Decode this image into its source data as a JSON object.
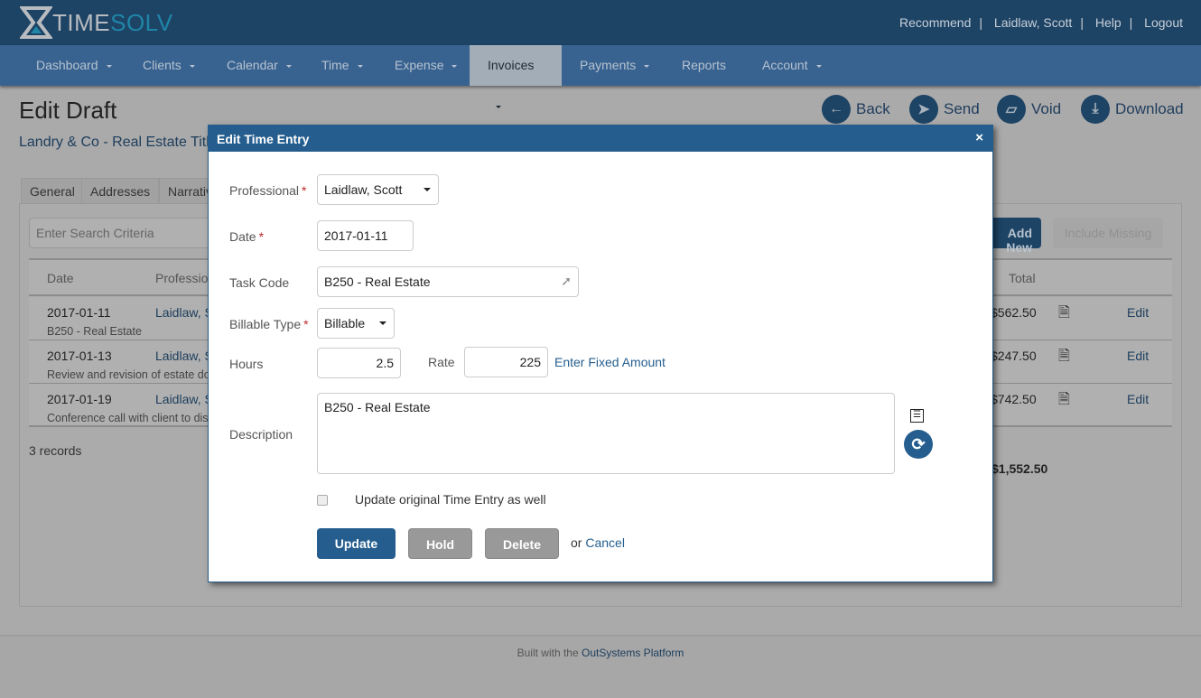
{
  "app": {
    "logo_part1": "TIME",
    "logo_part2": "SOLV",
    "logo_text": "TimeSolv"
  },
  "top_links": [
    "Recommend",
    "Laidlaw, Scott",
    "Help",
    "Logout"
  ],
  "nav": [
    {
      "label": "Dashboard",
      "caret": true
    },
    {
      "label": "Clients",
      "caret": true
    },
    {
      "label": "Calendar",
      "caret": true
    },
    {
      "label": "Time",
      "caret": true
    },
    {
      "label": "Expense",
      "caret": true
    },
    {
      "label": "Invoices",
      "caret": true,
      "active": true
    },
    {
      "label": "Payments",
      "caret": true
    },
    {
      "label": "Reports",
      "caret": false
    },
    {
      "label": "Account",
      "caret": true
    }
  ],
  "page": {
    "title": "Edit Draft",
    "subtitle": "Landry & Co - Real Estate Title"
  },
  "actions": [
    {
      "label": "Back",
      "icon": "arrow-left-icon"
    },
    {
      "label": "Send",
      "icon": "paper-plane-icon"
    },
    {
      "label": "Void",
      "icon": "eraser-icon"
    },
    {
      "label": "Download",
      "icon": "download-icon"
    }
  ],
  "tabs": [
    "General",
    "Addresses",
    "Narrative"
  ],
  "search": {
    "placeholder": "Enter Search Criteria"
  },
  "buttons": {
    "add_new": "Add New",
    "include_missing": "Include Missing"
  },
  "table": {
    "headers": {
      "date": "Date",
      "professional": "Professional",
      "total": "Total"
    },
    "rows": [
      {
        "date": "2017-01-11",
        "professional": "Laidlaw, Scott",
        "desc": "B250 - Real Estate",
        "total": "$562.50",
        "action": "Edit"
      },
      {
        "date": "2017-01-13",
        "professional": "Laidlaw, Scott",
        "desc": "Review and revision of estate documents",
        "total": "$247.50",
        "action": "Edit"
      },
      {
        "date": "2017-01-19",
        "professional": "Laidlaw, Scott",
        "desc": "Conference call with client to discuss",
        "total": "$742.50",
        "action": "Edit"
      }
    ],
    "records": "3 records",
    "grand_total": "$1,552.50"
  },
  "footer": {
    "prefix": "Built with the ",
    "link": "OutSystems Platform"
  },
  "modal": {
    "title": "Edit Time Entry",
    "close": "×",
    "professional_label": "Professional",
    "professional_value": "Laidlaw, Scott",
    "date_label": "Date",
    "date_value": "2017-01-11",
    "task_label": "Task Code",
    "task_value": "B250 - Real Estate",
    "billable_label": "Billable Type",
    "billable_value": "Billable",
    "hours_label": "Hours",
    "hours_value": "2.5",
    "rate_label": "Rate",
    "rate_value": "225",
    "fixed_link": "Enter Fixed Amount",
    "desc_label": "Description",
    "desc_value": "B250 - Real Estate",
    "checkbox_label": "Update original Time Entry as well",
    "checkbox_checked": false,
    "required_mark": "*",
    "update": "Update",
    "hold": "Hold",
    "delete": "Delete",
    "or": "or ",
    "cancel": "Cancel"
  },
  "colors": {
    "header": "#1d4365",
    "nav": "#386290",
    "modal_header": "#255e8e",
    "primary": "#255e8e",
    "secondary_btn": "#999999",
    "required": "#c0262d"
  }
}
